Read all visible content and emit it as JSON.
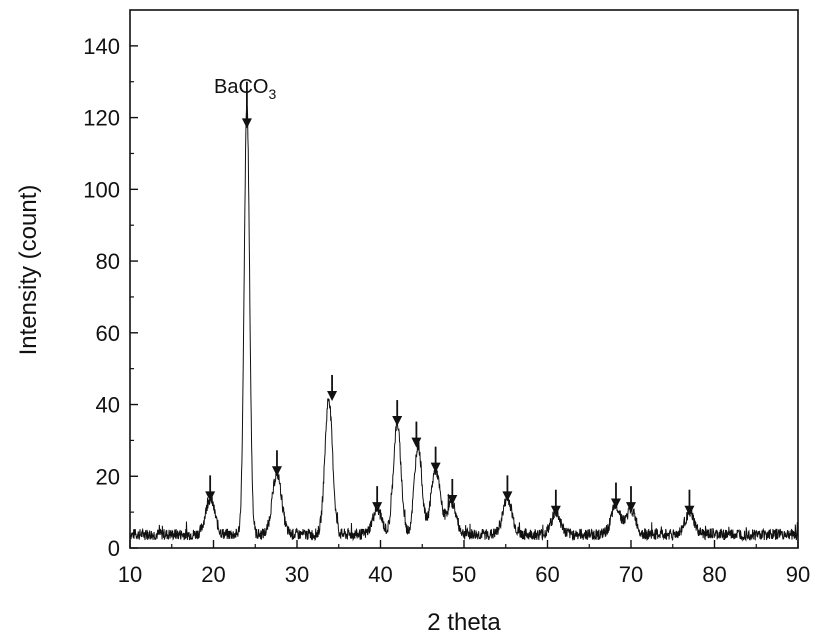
{
  "chart_data": {
    "type": "line",
    "title": "",
    "xlabel": "2 theta",
    "ylabel": "Intensity (count)",
    "xlim": [
      10,
      90
    ],
    "ylim": [
      0,
      150
    ],
    "x_ticks": [
      10,
      20,
      30,
      40,
      50,
      60,
      70,
      80,
      90
    ],
    "y_ticks": [
      0,
      20,
      40,
      60,
      80,
      100,
      120,
      140
    ],
    "grid": false,
    "legend": "none",
    "color": "#111111",
    "annotation": {
      "text": "BaCO",
      "subscript": "3",
      "x": 24.0,
      "y": 117
    },
    "peaks": [
      {
        "x": 19.6,
        "y": 10
      },
      {
        "x": 24.0,
        "y": 120
      },
      {
        "x": 27.6,
        "y": 17
      },
      {
        "x": 33.8,
        "y": 38
      },
      {
        "x": 39.6,
        "y": 7
      },
      {
        "x": 42.0,
        "y": 31
      },
      {
        "x": 44.5,
        "y": 25
      },
      {
        "x": 46.6,
        "y": 18
      },
      {
        "x": 48.5,
        "y": 9
      },
      {
        "x": 55.2,
        "y": 10
      },
      {
        "x": 61.0,
        "y": 6
      },
      {
        "x": 68.2,
        "y": 8
      },
      {
        "x": 70.0,
        "y": 7
      },
      {
        "x": 77.0,
        "y": 6
      }
    ],
    "markers_x": [
      19.6,
      27.6,
      34.2,
      39.6,
      42.0,
      44.3,
      46.6,
      48.6,
      55.2,
      61.0,
      68.2,
      70.0,
      77.0
    ]
  }
}
